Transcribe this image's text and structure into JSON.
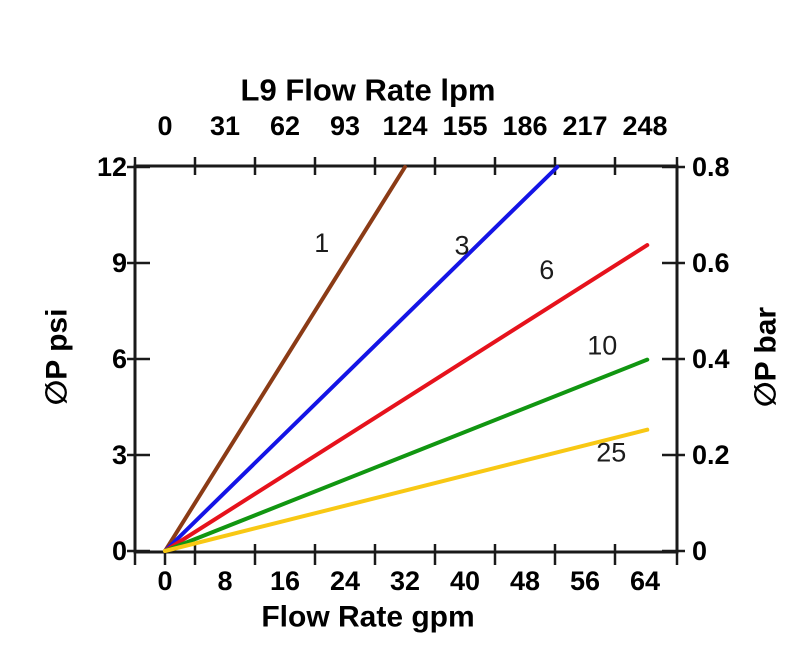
{
  "background_color": "#FFFFFF",
  "chart_data": {
    "type": "line",
    "title": "L9 Flow Rate lpm",
    "grid": false,
    "legend_position": "inline-labels-on-lines",
    "axis_color": "#1A1A1A",
    "top_axis": {
      "title": "L9 Flow Rate lpm",
      "unit": "lpm",
      "tick_labels": [
        "0",
        "31",
        "62",
        "93",
        "124",
        "155",
        "186",
        "217",
        "248"
      ]
    },
    "bottom_axis": {
      "title": "Flow Rate gpm",
      "unit": "gpm",
      "tick_labels": [
        "0",
        "8",
        "16",
        "24",
        "32",
        "40",
        "48",
        "56",
        "64"
      ],
      "tick_values": [
        0,
        8,
        16,
        24,
        32,
        40,
        48,
        56,
        64
      ],
      "range": [
        0,
        64
      ]
    },
    "left_axis": {
      "title": "∅P psi",
      "unit": "psi",
      "tick_labels": [
        "12",
        "9",
        "6",
        "3",
        "0"
      ],
      "tick_values": [
        12,
        9,
        6,
        3,
        0
      ],
      "range": [
        0,
        12
      ]
    },
    "right_axis": {
      "title": "∅P bar",
      "unit": "bar",
      "tick_labels": [
        "0.8",
        "0.6",
        "0.4",
        "0.2",
        "0"
      ],
      "tick_values": [
        12,
        9,
        6,
        3,
        0
      ],
      "range": [
        0,
        0.8
      ]
    },
    "series": [
      {
        "label": "1",
        "color": "#8B3B16",
        "points_gpm_psi": [
          [
            0,
            0
          ],
          [
            32,
            12
          ]
        ],
        "label_at_gpm_psi": [
          20.9,
          9.62
        ]
      },
      {
        "label": "3",
        "color": "#1414E6",
        "points_gpm_psi": [
          [
            0,
            0
          ],
          [
            52.3,
            12
          ]
        ],
        "label_at_gpm_psi": [
          39.6,
          9.55
        ]
      },
      {
        "label": "6",
        "color": "#E6121C",
        "points_gpm_psi": [
          [
            0,
            0
          ],
          [
            64.3,
            9.56
          ]
        ],
        "label_at_gpm_psi": [
          50.9,
          8.78
        ]
      },
      {
        "label": "10",
        "color": "#119611",
        "points_gpm_psi": [
          [
            0,
            0
          ],
          [
            64.3,
            5.98
          ]
        ],
        "label_at_gpm_psi": [
          58.3,
          6.42
        ]
      },
      {
        "label": "25",
        "color": "#F8C814",
        "points_gpm_psi": [
          [
            0,
            0
          ],
          [
            64.3,
            3.79
          ]
        ],
        "label_at_gpm_psi": [
          59.5,
          3.08
        ]
      }
    ]
  }
}
